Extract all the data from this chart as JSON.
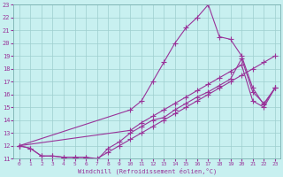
{
  "xlabel": "Windchill (Refroidissement éolien,°C)",
  "background_color": "#c8f0f0",
  "line_color": "#993399",
  "xlim": [
    -0.5,
    23.5
  ],
  "ylim": [
    11,
    23
  ],
  "xticks": [
    0,
    1,
    2,
    3,
    4,
    5,
    6,
    7,
    8,
    9,
    10,
    11,
    12,
    13,
    14,
    15,
    16,
    17,
    18,
    19,
    20,
    21,
    22,
    23
  ],
  "yticks": [
    11,
    12,
    13,
    14,
    15,
    16,
    17,
    18,
    19,
    20,
    21,
    22,
    23
  ],
  "line1_x": [
    0,
    1,
    2,
    3,
    4,
    5,
    6,
    7,
    8,
    9,
    10,
    11,
    12,
    13,
    14,
    15,
    16,
    17,
    18,
    19,
    20,
    21,
    22,
    23
  ],
  "line1_y": [
    12.0,
    11.8,
    11.2,
    11.2,
    11.1,
    11.1,
    11.1,
    11.0,
    11.5,
    12.0,
    12.5,
    13.0,
    13.5,
    14.0,
    14.5,
    15.0,
    15.5,
    16.0,
    16.5,
    17.0,
    17.5,
    18.0,
    18.5,
    19.0
  ],
  "line2_x": [
    0,
    10,
    11,
    12,
    13,
    14,
    15,
    16,
    17,
    18,
    19,
    20,
    21,
    22,
    23
  ],
  "line2_y": [
    12.0,
    14.8,
    15.5,
    17.0,
    18.5,
    20.0,
    21.2,
    22.0,
    23.0,
    20.5,
    20.3,
    19.0,
    16.5,
    15.2,
    16.5
  ],
  "line3_x": [
    0,
    1,
    2,
    3,
    4,
    5,
    6,
    7,
    8,
    9,
    10,
    11,
    12,
    13,
    14,
    15,
    16,
    17,
    18,
    19,
    20,
    21,
    22,
    23
  ],
  "line3_y": [
    12.0,
    11.8,
    11.2,
    11.2,
    11.1,
    11.1,
    11.1,
    10.9,
    11.8,
    12.3,
    13.0,
    13.5,
    14.0,
    14.2,
    14.8,
    15.3,
    15.8,
    16.2,
    16.7,
    17.2,
    18.8,
    16.2,
    15.3,
    16.5
  ],
  "line4_x": [
    0,
    10,
    11,
    12,
    13,
    14,
    15,
    16,
    17,
    18,
    19,
    20,
    21,
    22,
    23
  ],
  "line4_y": [
    12.0,
    13.2,
    13.8,
    14.3,
    14.8,
    15.3,
    15.8,
    16.3,
    16.8,
    17.3,
    17.8,
    18.3,
    15.5,
    15.0,
    16.5
  ]
}
